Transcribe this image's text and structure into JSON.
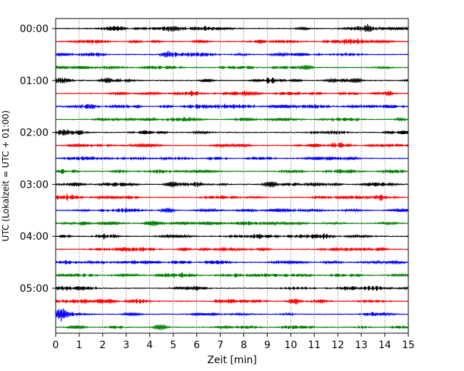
{
  "chart_data": {
    "type": "line",
    "xlabel": "Zeit  [min]",
    "ylabel": "UTC (Lokalzeit = UTC + 01:00)",
    "xlim": [
      0,
      15
    ],
    "x_ticks": [
      0,
      1,
      2,
      3,
      4,
      5,
      6,
      7,
      8,
      9,
      10,
      11,
      12,
      13,
      14,
      15
    ],
    "y_tick_labels": [
      "00:00",
      "01:00",
      "02:00",
      "03:00",
      "04:00",
      "05:00"
    ],
    "trace_interval_min": 15,
    "trace_count": 24,
    "trace_start_times": [
      "00:00",
      "00:15",
      "00:30",
      "00:45",
      "01:00",
      "01:15",
      "01:30",
      "01:45",
      "02:00",
      "02:15",
      "02:30",
      "02:45",
      "03:00",
      "03:15",
      "03:30",
      "03:45",
      "04:00",
      "04:15",
      "04:30",
      "04:45",
      "05:00",
      "05:15",
      "05:30",
      "05:45"
    ],
    "trace_colors": [
      "#000000",
      "#ff0000",
      "#0000ff",
      "#007f00"
    ],
    "vertical_grid": "dotted",
    "legend": "none",
    "events": [
      {
        "trace": 0,
        "minute": 4.9,
        "amplitude": 0.5
      },
      {
        "trace": 0,
        "minute": 13.1,
        "amplitude": 0.6
      },
      {
        "trace": 2,
        "minute": 4.6,
        "amplitude": 0.5
      },
      {
        "trace": 3,
        "minute": 10.5,
        "amplitude": 0.5
      },
      {
        "trace": 4,
        "minute": 2.0,
        "amplitude": 0.45
      },
      {
        "trace": 4,
        "minute": 12.6,
        "amplitude": 0.5
      },
      {
        "trace": 6,
        "minute": 1.3,
        "amplitude": 0.45
      },
      {
        "trace": 8,
        "minute": 0.2,
        "amplitude": 0.55
      },
      {
        "trace": 12,
        "minute": 4.8,
        "amplitude": 0.55
      },
      {
        "trace": 12,
        "minute": 9.0,
        "amplitude": 0.6
      },
      {
        "trace": 14,
        "minute": 4.6,
        "amplitude": 0.45
      },
      {
        "trace": 21,
        "minute": 10.0,
        "amplitude": 0.5
      },
      {
        "trace": 22,
        "minute": 0.1,
        "amplitude": 1.1
      },
      {
        "trace": 23,
        "minute": 4.3,
        "amplitude": 0.55
      }
    ]
  }
}
